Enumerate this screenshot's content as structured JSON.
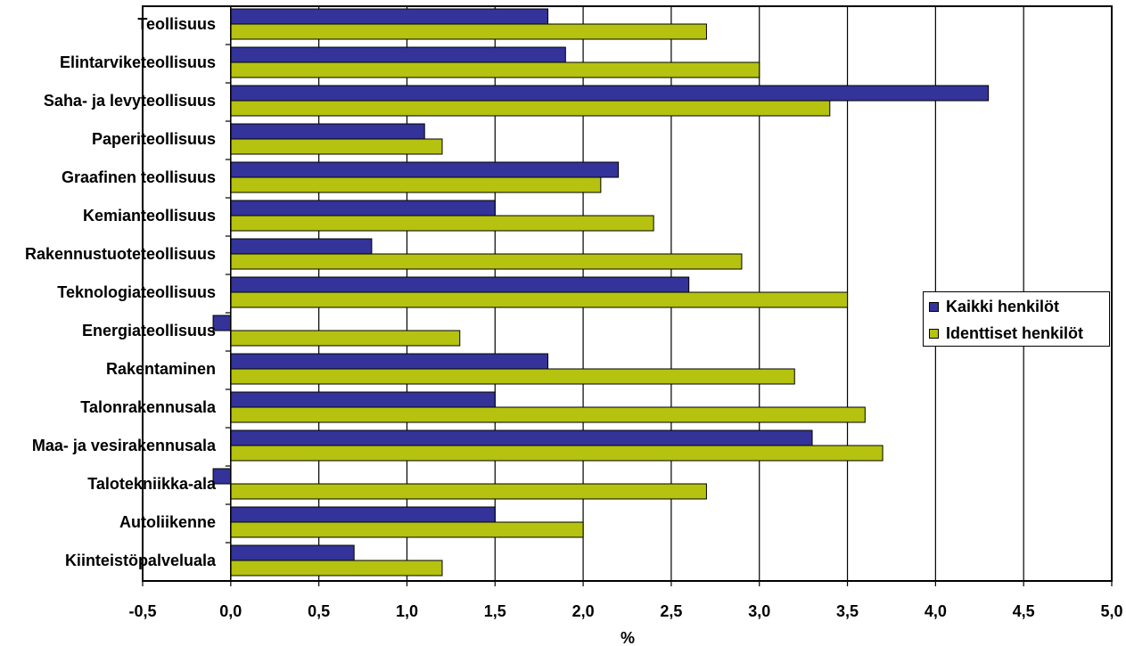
{
  "chart_data": {
    "type": "bar",
    "orientation": "horizontal",
    "categories": [
      "Teollisuus",
      "Elintarviketeollisuus",
      "Saha- ja levyteollisuus",
      "Paperiteollisuus",
      "Graafinen teollisuus",
      "Kemianteollisuus",
      "Rakennustuoteteollisuus",
      "Teknologiateollisuus",
      "Energiateollisuus",
      "Rakentaminen",
      "Talonrakennusala",
      "Maa- ja vesirakennusala",
      "Talotekniikka-ala",
      "Autoliikenne",
      "Kiinteistöpalveluala"
    ],
    "series": [
      {
        "name": "Kaikki henkilöt",
        "color": "#333399",
        "values": [
          1.8,
          1.9,
          4.3,
          1.1,
          2.2,
          1.5,
          0.8,
          2.6,
          -0.1,
          1.8,
          1.5,
          3.3,
          -0.1,
          1.5,
          0.7
        ]
      },
      {
        "name": "Identtiset henkilöt",
        "color": "#B5C20F",
        "values": [
          2.7,
          3.0,
          3.4,
          1.2,
          2.1,
          2.4,
          2.9,
          3.5,
          1.3,
          3.2,
          3.6,
          3.7,
          2.7,
          2.0,
          1.2
        ]
      }
    ],
    "xlim": [
      -0.5,
      5.0
    ],
    "x_ticks": [
      -0.5,
      0.0,
      0.5,
      1.0,
      1.5,
      2.0,
      2.5,
      3.0,
      3.5,
      4.0,
      4.5,
      5.0
    ],
    "x_tick_labels": [
      "-0,5",
      "0,0",
      "0,5",
      "1,0",
      "1,5",
      "2,0",
      "2,5",
      "3,0",
      "3,5",
      "4,0",
      "4,5",
      "5,0"
    ],
    "xlabel": "%",
    "ylabel": "",
    "title": "",
    "grid": "vertical",
    "legend_position": "right"
  }
}
